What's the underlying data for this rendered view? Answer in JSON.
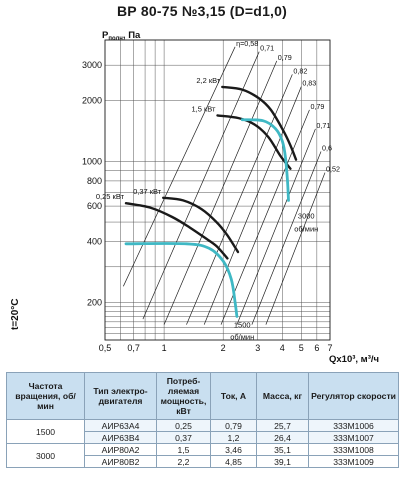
{
  "chart_data": {
    "type": "line",
    "title": "ВР 80-75 №3,15 (D=d1,0)",
    "y_axis": {
      "label_main": "P",
      "label_sub": "полн",
      "label_unit": ", Па",
      "scale": "log",
      "range": [
        130,
        4000
      ],
      "ticks": [
        {
          "v": 200,
          "t": "200"
        },
        {
          "v": 400,
          "t": "400"
        },
        {
          "v": 600,
          "t": "600"
        },
        {
          "v": 800,
          "t": "800"
        },
        {
          "v": 1000,
          "t": "1000"
        },
        {
          "v": 2000,
          "t": "2000"
        },
        {
          "v": 3000,
          "t": "3000"
        }
      ]
    },
    "x_axis": {
      "label": "Qx10³, м³/ч",
      "scale": "log",
      "range": [
        0.5,
        7
      ],
      "ticks": [
        {
          "v": 0.5,
          "t": "0,5"
        },
        {
          "v": 0.7,
          "t": "0,7"
        },
        {
          "v": 1,
          "t": "1"
        },
        {
          "v": 2,
          "t": "2"
        },
        {
          "v": 3,
          "t": "3"
        },
        {
          "v": 4,
          "t": "4"
        },
        {
          "v": 5,
          "t": "5"
        },
        {
          "v": 6,
          "t": "6"
        },
        {
          "v": 7,
          "t": "7"
        }
      ]
    },
    "temperature_label": "t=20°C",
    "grid": true,
    "series": [
      {
        "name": "2,2 кВт",
        "kind": "pressure",
        "speed": "3000 об/мин",
        "points": [
          [
            1.98,
            2340
          ],
          [
            2.5,
            2270
          ],
          [
            3.05,
            2050
          ],
          [
            3.5,
            1800
          ],
          [
            4.05,
            1420
          ],
          [
            4.4,
            1200
          ],
          [
            4.7,
            1020
          ]
        ]
      },
      {
        "name": "1,5 кВт",
        "kind": "pressure",
        "speed": "3000 об/мин",
        "points": [
          [
            1.87,
            1690
          ],
          [
            2.4,
            1640
          ],
          [
            2.9,
            1520
          ],
          [
            3.4,
            1320
          ],
          [
            3.9,
            1070
          ],
          [
            4.4,
            920
          ]
        ]
      },
      {
        "name": "0,37 кВт",
        "kind": "pressure",
        "speed": "1500 об/мин",
        "points": [
          [
            0.99,
            660
          ],
          [
            1.25,
            640
          ],
          [
            1.55,
            580
          ],
          [
            1.85,
            500
          ],
          [
            2.1,
            430
          ],
          [
            2.38,
            355
          ]
        ]
      },
      {
        "name": "0,25 кВт",
        "kind": "pressure",
        "speed": "1500 об/мин",
        "points": [
          [
            0.64,
            620
          ],
          [
            0.85,
            590
          ],
          [
            1.1,
            530
          ],
          [
            1.35,
            470
          ],
          [
            1.6,
            420
          ],
          [
            1.85,
            380
          ],
          [
            2.1,
            330
          ]
        ]
      },
      {
        "name": "3000 об/мин",
        "kind": "power",
        "points": [
          [
            2.5,
            1610
          ],
          [
            3.2,
            1590
          ],
          [
            3.7,
            1450
          ],
          [
            4.0,
            1260
          ],
          [
            4.15,
            1050
          ],
          [
            4.25,
            800
          ],
          [
            4.3,
            640
          ]
        ]
      },
      {
        "name": "1500 об/мин",
        "kind": "power",
        "points": [
          [
            0.64,
            390
          ],
          [
            1.3,
            390
          ],
          [
            1.7,
            370
          ],
          [
            2.0,
            320
          ],
          [
            2.2,
            260
          ],
          [
            2.3,
            200
          ],
          [
            2.35,
            170
          ]
        ]
      }
    ],
    "efficiency_lines": [
      {
        "label": "η=0,58",
        "from": [
          0.62,
          240
        ],
        "to": [
          2.3,
          3700
        ]
      },
      {
        "label": "0,71",
        "from": [
          0.78,
          165
        ],
        "to": [
          3.05,
          3500
        ]
      },
      {
        "label": "0,79",
        "from": [
          1.0,
          155
        ],
        "to": [
          3.75,
          3150
        ]
      },
      {
        "label": "0,82",
        "from": [
          1.3,
          155
        ],
        "to": [
          4.5,
          2700
        ]
      },
      {
        "label": "0,83",
        "from": [
          1.6,
          155
        ],
        "to": [
          5.0,
          2350
        ]
      },
      {
        "label": "0,79",
        "from": [
          1.95,
          155
        ],
        "to": [
          5.5,
          1800
        ]
      },
      {
        "label": "0,71",
        "from": [
          2.35,
          155
        ],
        "to": [
          5.9,
          1450
        ]
      },
      {
        "label": "0,6",
        "from": [
          2.8,
          155
        ],
        "to": [
          6.3,
          1120
        ]
      },
      {
        "label": "0,52",
        "from": [
          3.3,
          155
        ],
        "to": [
          6.6,
          880
        ]
      }
    ],
    "annotations": [
      {
        "text": "3000",
        "x": 5.3,
        "y": 520
      },
      {
        "text": "об/мин",
        "x": 5.3,
        "y": 450
      },
      {
        "text": "1500",
        "x": 2.5,
        "y": 150
      },
      {
        "text": "об/мин",
        "x": 2.5,
        "y": 131
      }
    ]
  },
  "table": {
    "headers": [
      "Частота вращения, об/мин",
      "Тип электро-двигателя",
      "Потреб-ляемая мощность, кВт",
      "Ток, А",
      "Масса, кг",
      "Регулятор скорости"
    ],
    "groups": [
      {
        "speed": "1500",
        "rows": [
          [
            "АИР63А4",
            "0,25",
            "0,79",
            "25,7",
            "333М1006"
          ],
          [
            "АИР63В4",
            "0,37",
            "1,2",
            "26,4",
            "333М1007"
          ]
        ]
      },
      {
        "speed": "3000",
        "rows": [
          [
            "АИР80А2",
            "1,5",
            "3,46",
            "35,1",
            "333М1008"
          ],
          [
            "АИР80В2",
            "2,2",
            "4,85",
            "39,1",
            "333М1009"
          ]
        ]
      }
    ]
  }
}
